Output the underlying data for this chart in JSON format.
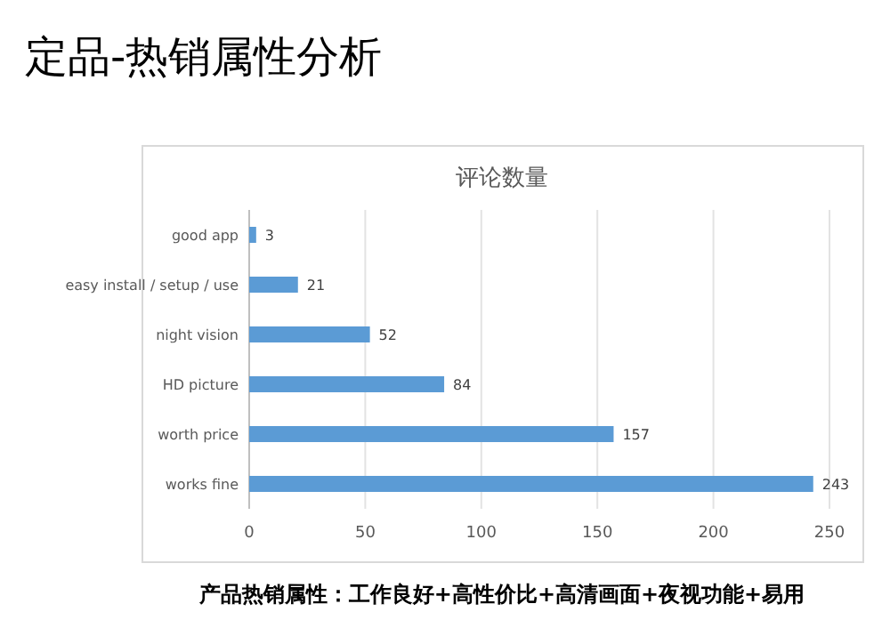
{
  "chart_data": {
    "type": "bar",
    "orientation": "horizontal",
    "title": "评论数量",
    "annotations": [
      "定品-热销属性分析",
      "产品热销属性：工作良好+高性价比+高清画面+夜视功能+易用"
    ],
    "categories": [
      "good app",
      "easy install / setup / use",
      "night vision",
      "HD picture",
      "worth price",
      "works fine"
    ],
    "values": [
      3,
      21,
      52,
      84,
      157,
      243
    ],
    "color": "#5b9bd5",
    "data_labels": true,
    "grid": "x",
    "xlim": [
      0,
      250
    ],
    "xticks": [
      0,
      50,
      100,
      150,
      200,
      250
    ]
  }
}
